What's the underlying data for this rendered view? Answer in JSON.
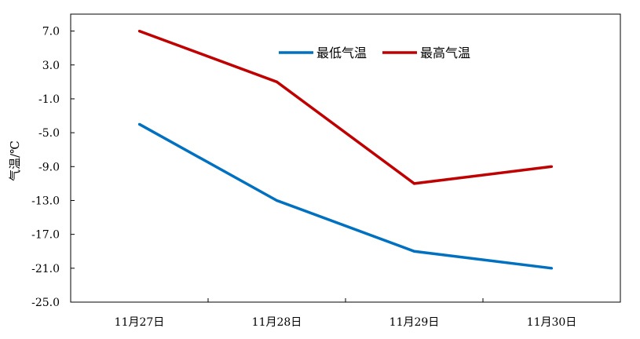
{
  "chart_data": {
    "type": "line",
    "categories": [
      "11月27日",
      "11月28日",
      "11月29日",
      "11月30日"
    ],
    "series": [
      {
        "name": "最低气温",
        "values": [
          -4.0,
          -13.0,
          -19.0,
          -21.0
        ],
        "color": "#0070C0"
      },
      {
        "name": "最高气温",
        "values": [
          7.0,
          1.0,
          -11.0,
          -9.0
        ],
        "color": "#C00000"
      }
    ],
    "ylabel": "气温/℃",
    "ylim": [
      -25.0,
      9.0
    ],
    "yticks": [
      "7.0",
      "3.0",
      "-1.0",
      "-5.0",
      "-9.0",
      "-13.0",
      "-17.0",
      "-21.0",
      "-25.0"
    ],
    "grid": false,
    "legend_position": "top-center"
  }
}
